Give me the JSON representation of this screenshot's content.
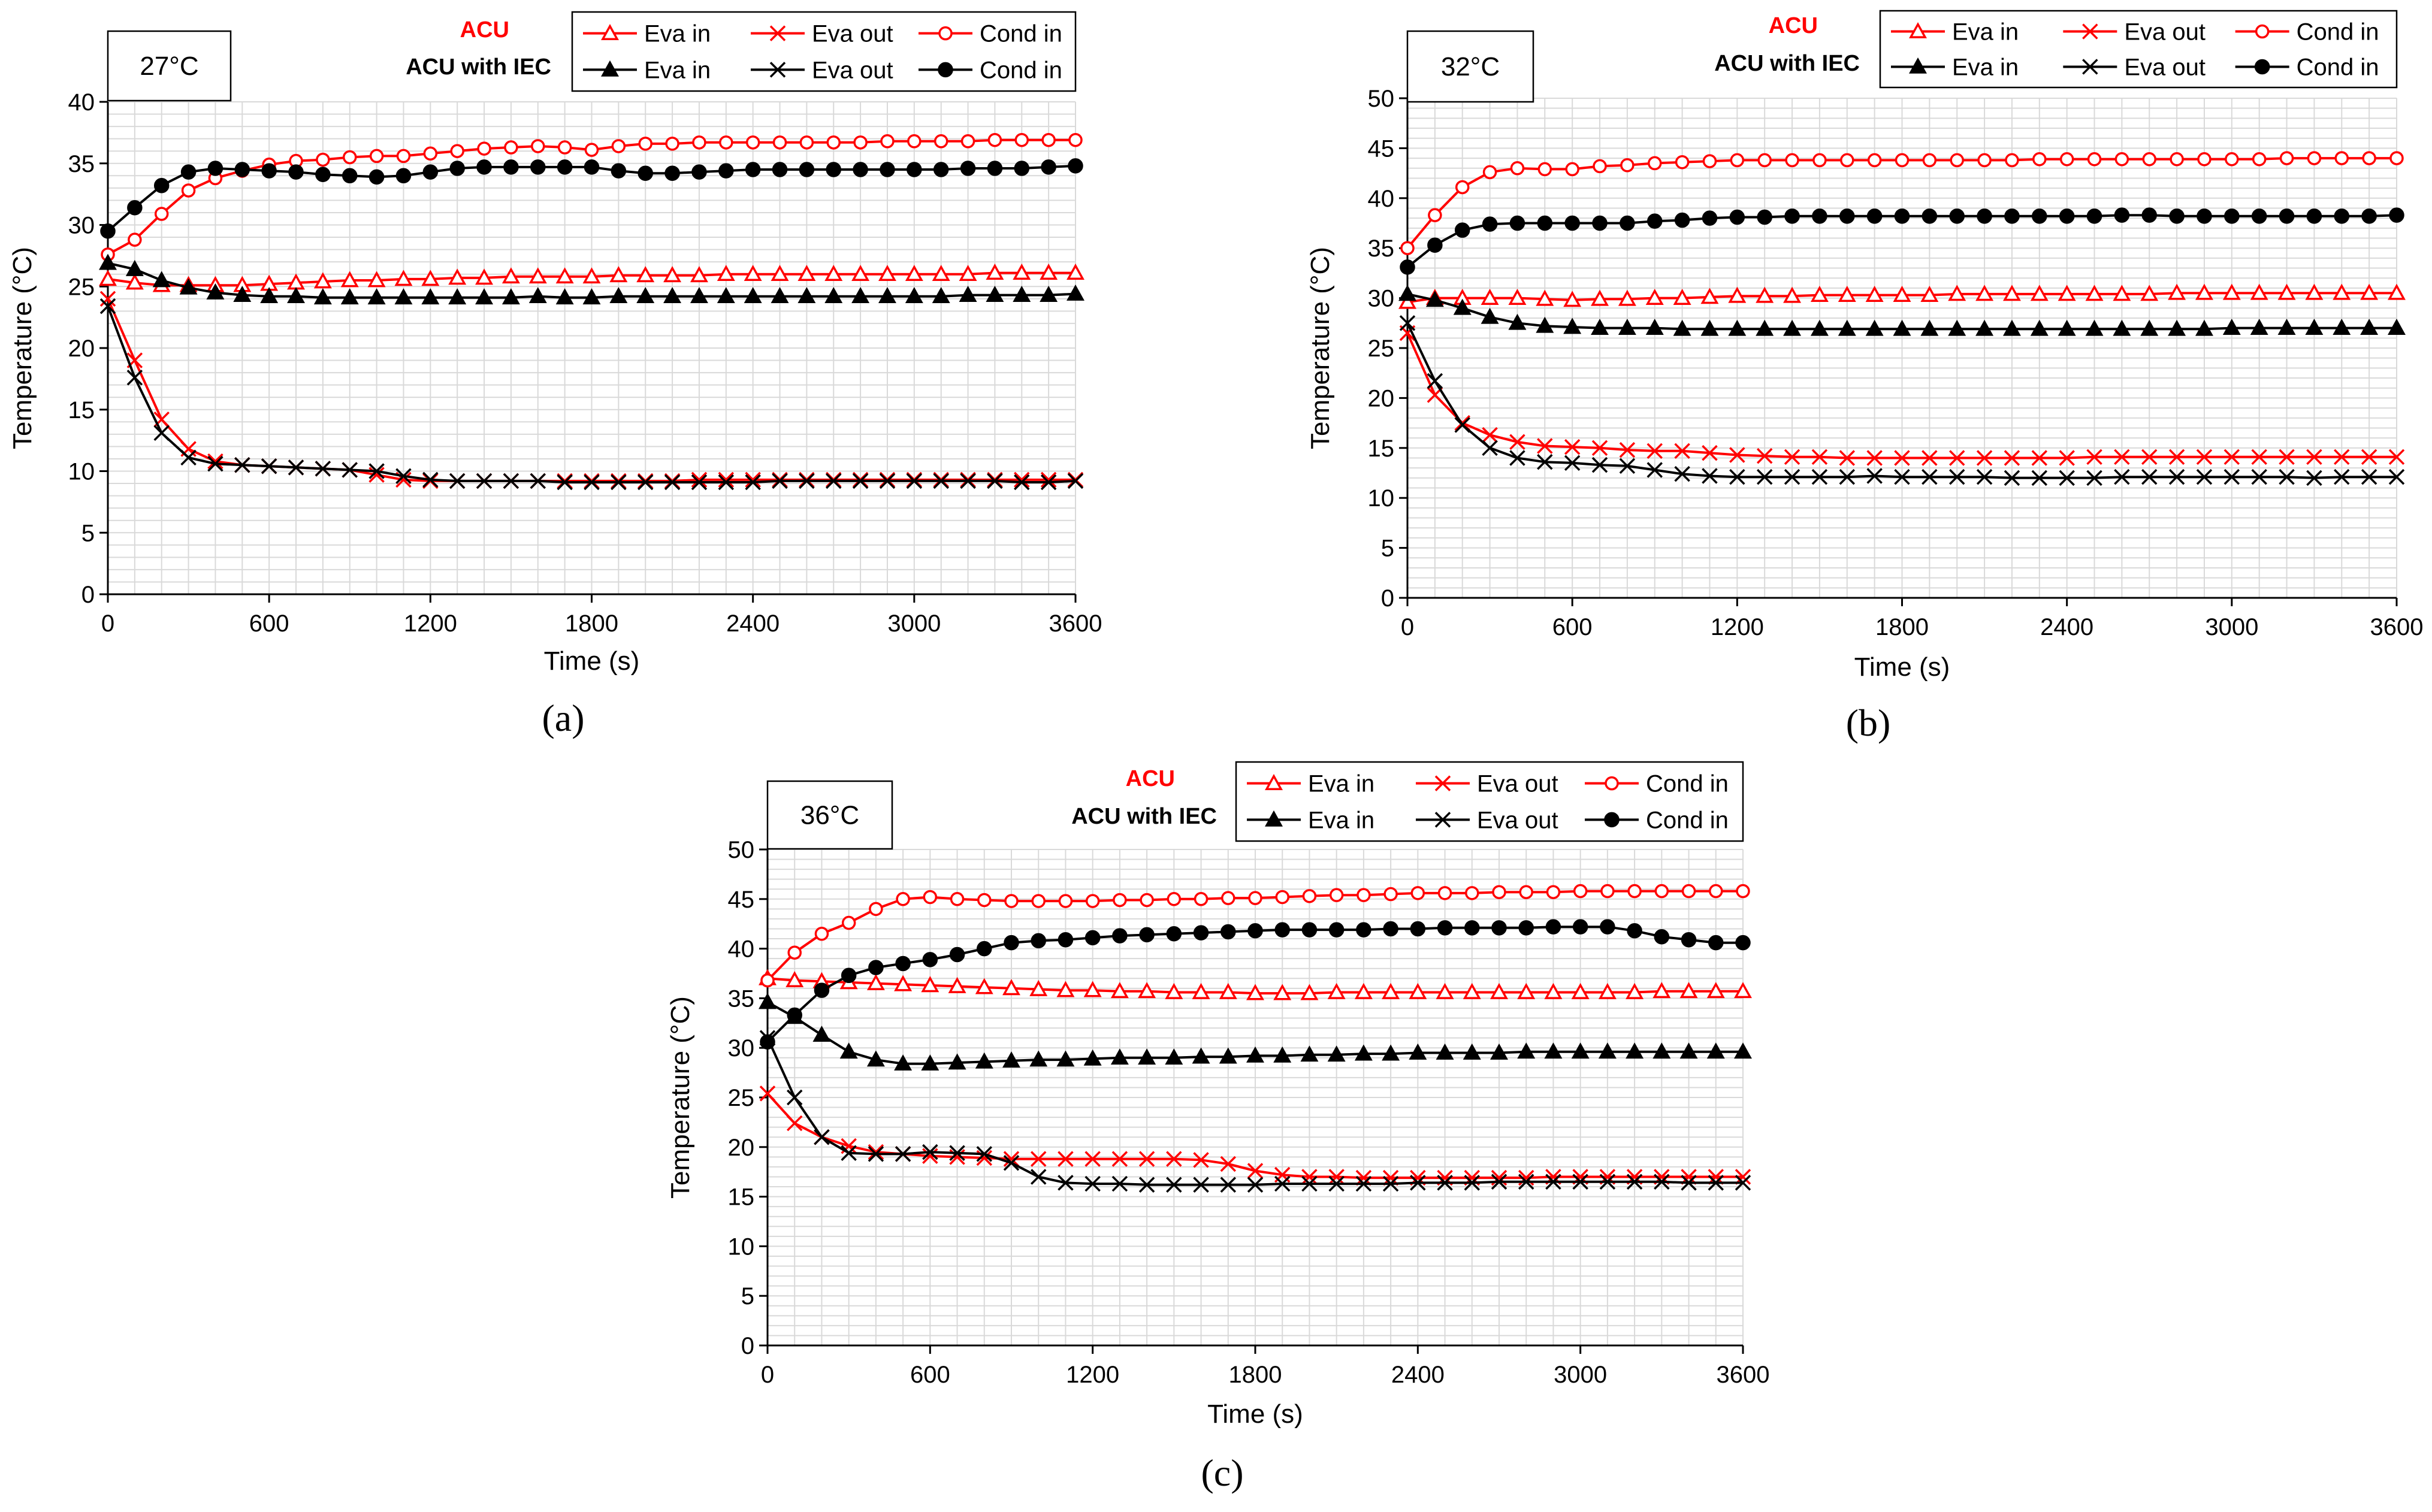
{
  "figure": {
    "panel_labels": [
      "(a)",
      "(b)",
      "(c)"
    ]
  },
  "colors": {
    "acu": "#ff0000",
    "iec": "#000000",
    "grid": "#d9d9d9",
    "axis": "#000000"
  },
  "legend": {
    "group_acu": "ACU",
    "group_iec": "ACU with IEC"
  },
  "chart_data": [
    {
      "type": "line",
      "title": "27°C",
      "xlabel": "Time (s)",
      "ylabel": "Temperature (°C)",
      "xlim": [
        0,
        3600
      ],
      "ylim": [
        0,
        40
      ],
      "xticks": [
        0,
        600,
        1200,
        1800,
        2400,
        3000,
        3600
      ],
      "yticks": [
        0,
        5,
        10,
        15,
        20,
        25,
        30,
        35,
        40
      ],
      "grid": true,
      "legend_position": "top-right",
      "x": [
        0,
        100,
        200,
        300,
        400,
        500,
        600,
        700,
        800,
        900,
        1000,
        1100,
        1200,
        1300,
        1400,
        1500,
        1600,
        1700,
        1800,
        1900,
        2000,
        2100,
        2200,
        2300,
        2400,
        2500,
        2600,
        2700,
        2800,
        2900,
        3000,
        3100,
        3200,
        3300,
        3400,
        3500,
        3600
      ],
      "series": [
        {
          "name": "Eva in",
          "group": "ACU",
          "marker": "open-triangle",
          "color": "#ff0000",
          "values": [
            25.6,
            25.3,
            25.1,
            25.1,
            25.1,
            25.1,
            25.2,
            25.3,
            25.4,
            25.5,
            25.5,
            25.6,
            25.6,
            25.7,
            25.7,
            25.8,
            25.8,
            25.8,
            25.8,
            25.9,
            25.9,
            25.9,
            25.9,
            26.0,
            26.0,
            26.0,
            26.0,
            26.0,
            26.0,
            26.0,
            26.0,
            26.0,
            26.0,
            26.1,
            26.1,
            26.1,
            26.1
          ]
        },
        {
          "name": "Eva out",
          "group": "ACU",
          "marker": "x",
          "color": "#ff0000",
          "values": [
            24.0,
            19.0,
            14.2,
            11.8,
            10.8,
            10.5,
            10.4,
            10.3,
            10.2,
            10.1,
            9.7,
            9.3,
            9.2,
            9.2,
            9.2,
            9.2,
            9.2,
            9.2,
            9.2,
            9.2,
            9.2,
            9.2,
            9.3,
            9.3,
            9.3,
            9.3,
            9.3,
            9.3,
            9.3,
            9.3,
            9.3,
            9.3,
            9.3,
            9.3,
            9.3,
            9.3,
            9.3
          ]
        },
        {
          "name": "Cond in",
          "group": "ACU",
          "marker": "open-circle",
          "color": "#ff0000",
          "values": [
            27.6,
            28.8,
            30.9,
            32.8,
            33.8,
            34.4,
            34.9,
            35.2,
            35.3,
            35.5,
            35.6,
            35.6,
            35.8,
            36.0,
            36.2,
            36.3,
            36.4,
            36.3,
            36.1,
            36.4,
            36.6,
            36.6,
            36.7,
            36.7,
            36.7,
            36.7,
            36.7,
            36.7,
            36.7,
            36.8,
            36.8,
            36.8,
            36.8,
            36.9,
            36.9,
            36.9,
            36.9
          ]
        },
        {
          "name": "Eva in",
          "group": "ACU with IEC",
          "marker": "filled-triangle",
          "color": "#000000",
          "values": [
            26.9,
            26.4,
            25.5,
            24.9,
            24.5,
            24.3,
            24.2,
            24.2,
            24.1,
            24.1,
            24.1,
            24.1,
            24.1,
            24.1,
            24.1,
            24.1,
            24.2,
            24.1,
            24.1,
            24.2,
            24.2,
            24.2,
            24.2,
            24.2,
            24.2,
            24.2,
            24.2,
            24.2,
            24.2,
            24.2,
            24.2,
            24.2,
            24.3,
            24.3,
            24.3,
            24.3,
            24.4
          ]
        },
        {
          "name": "Eva out",
          "group": "ACU with IEC",
          "marker": "x",
          "color": "#000000",
          "values": [
            23.4,
            17.6,
            13.1,
            11.1,
            10.6,
            10.5,
            10.4,
            10.3,
            10.2,
            10.1,
            10.0,
            9.6,
            9.3,
            9.2,
            9.2,
            9.2,
            9.2,
            9.1,
            9.1,
            9.1,
            9.1,
            9.1,
            9.1,
            9.1,
            9.1,
            9.2,
            9.2,
            9.2,
            9.2,
            9.2,
            9.2,
            9.2,
            9.2,
            9.2,
            9.1,
            9.1,
            9.2
          ]
        },
        {
          "name": "Cond in",
          "group": "ACU with IEC",
          "marker": "filled-circle",
          "color": "#000000",
          "values": [
            29.5,
            31.4,
            33.2,
            34.3,
            34.6,
            34.5,
            34.4,
            34.3,
            34.1,
            34.0,
            33.9,
            34.0,
            34.3,
            34.6,
            34.7,
            34.7,
            34.7,
            34.7,
            34.7,
            34.4,
            34.2,
            34.2,
            34.3,
            34.4,
            34.5,
            34.5,
            34.5,
            34.5,
            34.5,
            34.5,
            34.5,
            34.5,
            34.6,
            34.6,
            34.6,
            34.7,
            34.8
          ]
        }
      ]
    },
    {
      "type": "line",
      "title": "32°C",
      "xlabel": "Time (s)",
      "ylabel": "Temperature (°C)",
      "xlim": [
        0,
        3600
      ],
      "ylim": [
        0,
        50
      ],
      "xticks": [
        0,
        600,
        1200,
        1800,
        2400,
        3000,
        3600
      ],
      "yticks": [
        0,
        5,
        10,
        15,
        20,
        25,
        30,
        35,
        40,
        45,
        50
      ],
      "grid": true,
      "legend_position": "top-right",
      "x": [
        0,
        100,
        200,
        300,
        400,
        500,
        600,
        700,
        800,
        900,
        1000,
        1100,
        1200,
        1300,
        1400,
        1500,
        1600,
        1700,
        1800,
        1900,
        2000,
        2100,
        2200,
        2300,
        2400,
        2500,
        2600,
        2700,
        2800,
        2900,
        3000,
        3100,
        3200,
        3300,
        3400,
        3500,
        3600
      ],
      "series": [
        {
          "name": "Eva in",
          "group": "ACU",
          "marker": "open-triangle",
          "color": "#ff0000",
          "values": [
            29.6,
            30.0,
            30.0,
            30.0,
            30.0,
            29.9,
            29.8,
            29.9,
            29.9,
            30.0,
            30.0,
            30.1,
            30.2,
            30.2,
            30.2,
            30.3,
            30.3,
            30.3,
            30.3,
            30.3,
            30.4,
            30.4,
            30.4,
            30.4,
            30.4,
            30.4,
            30.4,
            30.4,
            30.5,
            30.5,
            30.5,
            30.5,
            30.5,
            30.5,
            30.5,
            30.5,
            30.5
          ]
        },
        {
          "name": "Eva out",
          "group": "ACU",
          "marker": "x",
          "color": "#ff0000",
          "values": [
            26.5,
            20.3,
            17.5,
            16.3,
            15.6,
            15.2,
            15.1,
            15.0,
            14.8,
            14.7,
            14.7,
            14.5,
            14.3,
            14.2,
            14.1,
            14.1,
            14.0,
            14.0,
            14.0,
            14.0,
            14.0,
            14.0,
            14.0,
            14.0,
            14.0,
            14.1,
            14.1,
            14.1,
            14.1,
            14.1,
            14.1,
            14.1,
            14.1,
            14.1,
            14.1,
            14.1,
            14.1
          ]
        },
        {
          "name": "Cond in",
          "group": "ACU",
          "marker": "open-circle",
          "color": "#ff0000",
          "values": [
            35.0,
            38.3,
            41.1,
            42.6,
            43.0,
            42.9,
            42.9,
            43.2,
            43.3,
            43.5,
            43.6,
            43.7,
            43.8,
            43.8,
            43.8,
            43.8,
            43.8,
            43.8,
            43.8,
            43.8,
            43.8,
            43.8,
            43.8,
            43.9,
            43.9,
            43.9,
            43.9,
            43.9,
            43.9,
            43.9,
            43.9,
            43.9,
            44.0,
            44.0,
            44.0,
            44.0,
            44.0
          ]
        },
        {
          "name": "Eva in",
          "group": "ACU with IEC",
          "marker": "filled-triangle",
          "color": "#000000",
          "values": [
            30.4,
            29.8,
            29.0,
            28.1,
            27.5,
            27.2,
            27.1,
            27.0,
            27.0,
            27.0,
            26.9,
            26.9,
            26.9,
            26.9,
            26.9,
            26.9,
            26.9,
            26.9,
            26.9,
            26.9,
            26.9,
            26.9,
            26.9,
            26.9,
            26.9,
            26.9,
            26.9,
            26.9,
            26.9,
            26.9,
            27.0,
            27.0,
            27.0,
            27.0,
            27.0,
            27.0,
            27.0
          ]
        },
        {
          "name": "Eva out",
          "group": "ACU with IEC",
          "marker": "x",
          "color": "#000000",
          "values": [
            27.5,
            21.7,
            17.3,
            15.0,
            14.0,
            13.6,
            13.5,
            13.3,
            13.2,
            12.8,
            12.4,
            12.2,
            12.1,
            12.1,
            12.1,
            12.1,
            12.1,
            12.2,
            12.1,
            12.1,
            12.1,
            12.1,
            12.0,
            12.0,
            12.0,
            12.0,
            12.1,
            12.1,
            12.1,
            12.1,
            12.1,
            12.1,
            12.1,
            12.0,
            12.1,
            12.1,
            12.1
          ]
        },
        {
          "name": "Cond in",
          "group": "ACU with IEC",
          "marker": "filled-circle",
          "color": "#000000",
          "values": [
            33.1,
            35.3,
            36.8,
            37.4,
            37.5,
            37.5,
            37.5,
            37.5,
            37.5,
            37.7,
            37.8,
            38.0,
            38.1,
            38.1,
            38.2,
            38.2,
            38.2,
            38.2,
            38.2,
            38.2,
            38.2,
            38.2,
            38.2,
            38.2,
            38.2,
            38.2,
            38.3,
            38.3,
            38.2,
            38.2,
            38.2,
            38.2,
            38.2,
            38.2,
            38.2,
            38.2,
            38.3
          ]
        }
      ]
    },
    {
      "type": "line",
      "title": "36°C",
      "xlabel": "Time (s)",
      "ylabel": "Temperature (°C)",
      "xlim": [
        0,
        3600
      ],
      "ylim": [
        0,
        50
      ],
      "xticks": [
        0,
        600,
        1200,
        1800,
        2400,
        3000,
        3600
      ],
      "yticks": [
        0,
        5,
        10,
        15,
        20,
        25,
        30,
        35,
        40,
        45,
        50
      ],
      "grid": true,
      "legend_position": "top-right",
      "x": [
        0,
        100,
        200,
        300,
        400,
        500,
        600,
        700,
        800,
        900,
        1000,
        1100,
        1200,
        1300,
        1400,
        1500,
        1600,
        1700,
        1800,
        1900,
        2000,
        2100,
        2200,
        2300,
        2400,
        2500,
        2600,
        2700,
        2800,
        2900,
        3000,
        3100,
        3200,
        3300,
        3400,
        3500,
        3600
      ],
      "series": [
        {
          "name": "Eva in",
          "group": "ACU",
          "marker": "open-triangle",
          "color": "#ff0000",
          "values": [
            37.0,
            36.8,
            36.7,
            36.6,
            36.5,
            36.4,
            36.3,
            36.2,
            36.1,
            36.0,
            35.9,
            35.8,
            35.8,
            35.7,
            35.7,
            35.6,
            35.6,
            35.6,
            35.5,
            35.5,
            35.5,
            35.6,
            35.6,
            35.6,
            35.6,
            35.6,
            35.6,
            35.6,
            35.6,
            35.6,
            35.6,
            35.6,
            35.6,
            35.7,
            35.7,
            35.7,
            35.7
          ]
        },
        {
          "name": "Eva out",
          "group": "ACU",
          "marker": "x",
          "color": "#ff0000",
          "values": [
            25.4,
            22.4,
            21.0,
            20.1,
            19.5,
            19.3,
            19.1,
            19.0,
            18.9,
            18.8,
            18.8,
            18.8,
            18.8,
            18.8,
            18.8,
            18.8,
            18.7,
            18.3,
            17.6,
            17.2,
            17.0,
            17.0,
            16.9,
            16.9,
            16.9,
            16.9,
            16.9,
            16.9,
            16.9,
            17.0,
            17.0,
            17.0,
            17.0,
            17.0,
            17.0,
            17.0,
            17.0
          ]
        },
        {
          "name": "Cond in",
          "group": "ACU",
          "marker": "open-circle",
          "color": "#ff0000",
          "values": [
            36.8,
            39.6,
            41.5,
            42.6,
            44.0,
            45.0,
            45.2,
            45.0,
            44.9,
            44.8,
            44.8,
            44.8,
            44.8,
            44.9,
            44.9,
            45.0,
            45.0,
            45.1,
            45.1,
            45.2,
            45.3,
            45.4,
            45.4,
            45.5,
            45.6,
            45.6,
            45.6,
            45.7,
            45.7,
            45.7,
            45.8,
            45.8,
            45.8,
            45.8,
            45.8,
            45.8,
            45.8
          ]
        },
        {
          "name": "Eva in",
          "group": "ACU with IEC",
          "marker": "filled-triangle",
          "color": "#000000",
          "values": [
            34.6,
            33.1,
            31.3,
            29.6,
            28.8,
            28.4,
            28.4,
            28.5,
            28.6,
            28.7,
            28.8,
            28.8,
            28.9,
            29.0,
            29.0,
            29.0,
            29.1,
            29.1,
            29.2,
            29.2,
            29.3,
            29.3,
            29.4,
            29.4,
            29.5,
            29.5,
            29.5,
            29.5,
            29.6,
            29.6,
            29.6,
            29.6,
            29.6,
            29.6,
            29.6,
            29.6,
            29.6
          ]
        },
        {
          "name": "Eva out",
          "group": "ACU with IEC",
          "marker": "x",
          "color": "#000000",
          "values": [
            31.0,
            25.0,
            21.0,
            19.4,
            19.3,
            19.3,
            19.5,
            19.4,
            19.3,
            18.4,
            17.0,
            16.4,
            16.3,
            16.3,
            16.2,
            16.2,
            16.2,
            16.2,
            16.2,
            16.3,
            16.3,
            16.3,
            16.3,
            16.3,
            16.4,
            16.4,
            16.4,
            16.5,
            16.5,
            16.5,
            16.5,
            16.5,
            16.5,
            16.5,
            16.4,
            16.4,
            16.4
          ]
        },
        {
          "name": "Cond in",
          "group": "ACU with IEC",
          "marker": "filled-circle",
          "color": "#000000",
          "values": [
            30.6,
            33.3,
            35.8,
            37.3,
            38.1,
            38.5,
            38.9,
            39.4,
            40.0,
            40.6,
            40.8,
            40.9,
            41.1,
            41.3,
            41.4,
            41.5,
            41.6,
            41.7,
            41.8,
            41.9,
            41.9,
            41.9,
            41.9,
            42.0,
            42.0,
            42.1,
            42.1,
            42.1,
            42.1,
            42.2,
            42.2,
            42.2,
            41.8,
            41.2,
            40.9,
            40.6,
            40.6
          ]
        }
      ]
    }
  ]
}
